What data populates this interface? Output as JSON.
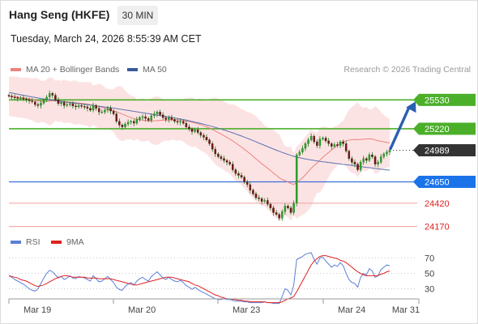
{
  "header": {
    "title": "Hang Seng (HKFE)",
    "timeframe": "30 MIN",
    "datetime": "Tuesday, March 24, 2026 8:55:39 AM CET"
  },
  "legend": {
    "ma20": {
      "label": "MA 20 + Bollinger Bands",
      "color": "#f08080"
    },
    "ma50": {
      "label": "MA 50",
      "color": "#3a5a9a"
    },
    "copyright": "Research © 2026 Trading Central"
  },
  "rsi_legend": {
    "rsi": {
      "label": "RSI",
      "color": "#5b7fd6"
    },
    "ma9": {
      "label": "9MA",
      "color": "#e02020"
    }
  },
  "chart_data": [
    {
      "type": "candlestick",
      "ylim": [
        24080,
        25820
      ],
      "x_ticks": [
        "Mar 19",
        "Mar 20",
        "Mar 23",
        "Mar 24",
        "Mar 31"
      ],
      "levels": [
        {
          "value": 25530,
          "label": "25530",
          "kind": "resistance"
        },
        {
          "value": 25220,
          "label": "25220",
          "kind": "resistance"
        },
        {
          "value": 24989,
          "label": "24989",
          "kind": "last"
        },
        {
          "value": 24650,
          "label": "24650",
          "kind": "pivot"
        },
        {
          "value": 24420,
          "label": "24420",
          "kind": "support"
        },
        {
          "value": 24170,
          "label": "24170",
          "kind": "support"
        }
      ],
      "closes": [
        25570,
        25560,
        25555,
        25545,
        25550,
        25540,
        25530,
        25520,
        25510,
        25480,
        25470,
        25495,
        25530,
        25560,
        25600,
        25580,
        25530,
        25490,
        25505,
        25470,
        25480,
        25490,
        25465,
        25455,
        25470,
        25460,
        25455,
        25440,
        25420,
        25470,
        25440,
        25400,
        25400,
        25420,
        25440,
        25410,
        25380,
        25300,
        25260,
        25240,
        25270,
        25290,
        25300,
        25280,
        25320,
        25340,
        25350,
        25330,
        25310,
        25360,
        25380,
        25400,
        25370,
        25340,
        25320,
        25340,
        25320,
        25300,
        25290,
        25300,
        25280,
        25240,
        25220,
        25190,
        25210,
        25180,
        25150,
        25130,
        25100,
        25060,
        25000,
        24950,
        24920,
        24900,
        24880,
        24860,
        24840,
        24780,
        24740,
        24720,
        24700,
        24650,
        24620,
        24560,
        24520,
        24480,
        24470,
        24440,
        24450,
        24410,
        24370,
        24320,
        24300,
        24260,
        24330,
        24390,
        24370,
        24320,
        24420,
        24940,
        24970,
        25010,
        25060,
        25100,
        25140,
        25080,
        25040,
        25110,
        25120,
        25090,
        25060,
        25030,
        25050,
        25040,
        25080,
        25060,
        24980,
        24900,
        24860,
        24840,
        24780,
        24860,
        24900,
        24880,
        24940,
        24920,
        24840,
        24860,
        24920,
        24950,
        24970,
        24989
      ],
      "ma20": [
        25570,
        25568,
        25565,
        25560,
        25555,
        25552,
        25548,
        25542,
        25536,
        25528,
        25520,
        25514,
        25512,
        25513,
        25517,
        25520,
        25521,
        25518,
        25516,
        25513,
        25510,
        25507,
        25504,
        25500,
        25496,
        25492,
        25489,
        25485,
        25478,
        25473,
        25467,
        25460,
        25451,
        25442,
        25433,
        25424,
        25415,
        25403,
        25390,
        25378,
        25365,
        25352,
        25340,
        25330,
        25322,
        25316,
        25312,
        25308,
        25305,
        25304,
        25305,
        25308,
        25310,
        25312,
        25312,
        25314,
        25316,
        25317,
        25316,
        25314,
        25310,
        25304,
        25297,
        25290,
        25282,
        25274,
        25264,
        25253,
        25241,
        25228,
        25213,
        25196,
        25179,
        25162,
        25145,
        25127,
        25109,
        25089,
        25068,
        25046,
        25024,
        25000,
        24976,
        24950,
        24924,
        24897,
        24871,
        24844,
        24820,
        24796,
        24771,
        24745,
        24720,
        24694,
        24676,
        24662,
        24648,
        24632,
        24622,
        24643,
        24667,
        24694,
        24725,
        24760,
        24796,
        24825,
        24852,
        24883,
        24914,
        24941,
        24966,
        24991,
        25017,
        25041,
        25064,
        25081,
        25092,
        25098,
        25102,
        25105,
        25103,
        25104,
        25108,
        25110,
        25112,
        25110,
        25100,
        25092,
        25086,
        25080,
        25074,
        25067
      ],
      "ma50": [
        25610,
        25604,
        25598,
        25592,
        25586,
        25580,
        25574,
        25568,
        25562,
        25556,
        25550,
        25545,
        25540,
        25535,
        25530,
        25526,
        25522,
        25518,
        25514,
        25510,
        25506,
        25502,
        25498,
        25494,
        25490,
        25486,
        25482,
        25478,
        25474,
        25470,
        25466,
        25462,
        25458,
        25454,
        25450,
        25446,
        25442,
        25437,
        25432,
        25427,
        25422,
        25417,
        25412,
        25407,
        25402,
        25397,
        25392,
        25387,
        25382,
        25377,
        25372,
        25367,
        25362,
        25357,
        25352,
        25347,
        25342,
        25337,
        25331,
        25325,
        25319,
        25313,
        25306,
        25299,
        25292,
        25285,
        25277,
        25269,
        25261,
        25253,
        25244,
        25235,
        25226,
        25217,
        25207,
        25197,
        25187,
        25176,
        25165,
        25154,
        25142,
        25130,
        25118,
        25106,
        25093,
        25080,
        25067,
        25054,
        25041,
        25028,
        25015,
        25002,
        24990,
        24978,
        24966,
        24955,
        24944,
        24934,
        24924,
        24916,
        24909,
        24902,
        24896,
        24890,
        24885,
        24880,
        24875,
        24870,
        24866,
        24862,
        24858,
        24854,
        24850,
        24846,
        24842,
        24838,
        24834,
        24830,
        24826,
        24822,
        24818,
        24814,
        24810,
        24806,
        24802,
        24798,
        24794,
        24790,
        24786,
        24782,
        24779,
        24776
      ],
      "bollinger_width": 210
    },
    {
      "type": "line",
      "title": "RSI",
      "ylim": [
        0,
        100
      ],
      "y_ticks": [
        70,
        50,
        30
      ],
      "rsi": [
        47,
        45,
        42,
        40,
        38,
        36,
        33,
        30,
        28,
        27,
        30,
        37,
        44,
        50,
        54,
        52,
        48,
        44,
        46,
        42,
        44,
        47,
        44,
        43,
        46,
        45,
        44,
        42,
        40,
        47,
        43,
        39,
        40,
        43,
        46,
        42,
        38,
        32,
        29,
        28,
        33,
        36,
        38,
        35,
        40,
        43,
        45,
        42,
        40,
        46,
        49,
        52,
        48,
        44,
        42,
        45,
        42,
        40,
        39,
        41,
        38,
        34,
        32,
        29,
        32,
        29,
        27,
        25,
        23,
        21,
        19,
        17,
        16,
        16,
        17,
        16,
        16,
        15,
        14,
        14,
        14,
        13,
        13,
        12,
        12,
        12,
        12,
        12,
        13,
        12,
        12,
        11,
        11,
        11,
        20,
        30,
        28,
        22,
        35,
        68,
        70,
        72,
        75,
        76,
        77,
        68,
        62,
        70,
        71,
        66,
        62,
        58,
        61,
        59,
        64,
        60,
        50,
        42,
        38,
        37,
        32,
        45,
        50,
        48,
        56,
        53,
        45,
        47,
        55,
        58,
        61,
        60
      ],
      "ma9": [
        47,
        46,
        45,
        44,
        42,
        41,
        40,
        38,
        36,
        34,
        33,
        34,
        35,
        37,
        39,
        41,
        43,
        45,
        46,
        47,
        47,
        46,
        45,
        45,
        45,
        45,
        45,
        44,
        44,
        44,
        44,
        43,
        43,
        43,
        43,
        43,
        42,
        41,
        40,
        39,
        38,
        37,
        36,
        35,
        35,
        36,
        37,
        38,
        39,
        40,
        41,
        42,
        43,
        44,
        45,
        45,
        45,
        44,
        43,
        42,
        41,
        40,
        39,
        37,
        35,
        34,
        32,
        30,
        28,
        26,
        24,
        22,
        21,
        19,
        18,
        17,
        17,
        16,
        16,
        15,
        15,
        14,
        14,
        13,
        13,
        13,
        13,
        13,
        13,
        12,
        12,
        12,
        12,
        12,
        13,
        15,
        17,
        18,
        20,
        26,
        33,
        40,
        47,
        54,
        61,
        66,
        69,
        72,
        73,
        73,
        72,
        71,
        70,
        69,
        67,
        66,
        64,
        61,
        58,
        55,
        52,
        50,
        48,
        47,
        47,
        47,
        47,
        47,
        49,
        50,
        52,
        53
      ]
    }
  ]
}
